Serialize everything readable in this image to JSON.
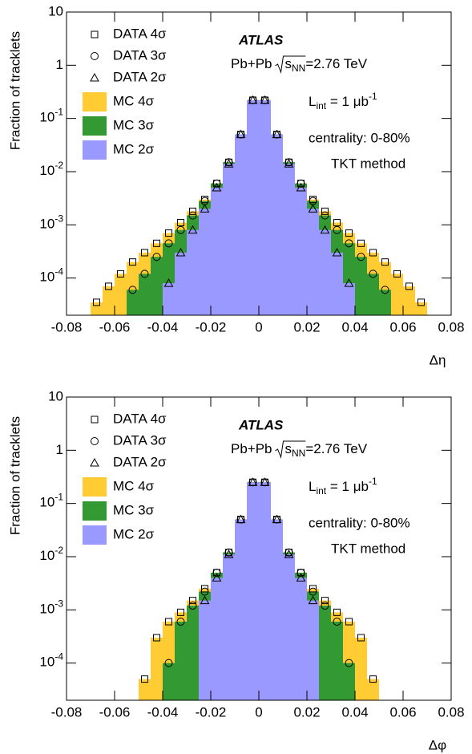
{
  "chart_data": [
    {
      "type": "histogram",
      "y_label": "Fraction of tracklets",
      "x_label": "Δη",
      "xlim": [
        -0.08,
        0.08
      ],
      "ylim": [
        2e-05,
        10
      ],
      "log_y": true,
      "legend": "upper left",
      "xticks": [
        -0.08,
        -0.06,
        -0.04,
        -0.02,
        0,
        0.02,
        0.04,
        0.06,
        0.08
      ],
      "yticks": [
        {
          "value": 0.0001,
          "label": "10",
          "exponent": "-4"
        },
        {
          "value": 0.001,
          "label": "10",
          "exponent": "-3"
        },
        {
          "value": 0.01,
          "label": "10",
          "exponent": "-2"
        },
        {
          "value": 0.1,
          "label": "10",
          "exponent": "-1"
        },
        1,
        10
      ],
      "bins": [
        -0.08,
        -0.075,
        -0.07,
        -0.065,
        -0.06,
        -0.055,
        -0.05,
        -0.045,
        -0.04,
        -0.035,
        -0.03,
        -0.025,
        -0.02,
        -0.015,
        -0.01,
        -0.005,
        0,
        0.005,
        0.01,
        0.015,
        0.02,
        0.025,
        0.03,
        0.035,
        0.04,
        0.045,
        0.05,
        0.055,
        0.06,
        0.065,
        0.07,
        0.075,
        0.08
      ],
      "series": [
        {
          "name": "DATA 4σ",
          "marker": "square",
          "color": "#000000",
          "values": [
            null,
            null,
            3.5e-05,
            7e-05,
            0.00012,
            0.0002,
            0.0003,
            0.00045,
            0.0007,
            0.0011,
            0.0018,
            0.003,
            0.006,
            0.015,
            0.05,
            0.22,
            0.22,
            0.05,
            0.015,
            0.006,
            0.003,
            0.0018,
            0.0011,
            0.0007,
            0.00045,
            0.0003,
            0.0002,
            0.00012,
            7e-05,
            3.5e-05,
            null,
            null
          ]
        },
        {
          "name": "DATA 3σ",
          "marker": "circle",
          "color": "#000000",
          "values": [
            null,
            null,
            null,
            null,
            null,
            6e-05,
            0.00012,
            0.00025,
            0.00045,
            0.0008,
            0.0015,
            0.0028,
            0.006,
            0.015,
            0.05,
            0.22,
            0.22,
            0.05,
            0.015,
            0.006,
            0.0028,
            0.0015,
            0.0008,
            0.00045,
            0.00025,
            0.00012,
            6e-05,
            null,
            null,
            null,
            null,
            null
          ]
        },
        {
          "name": "DATA 2σ",
          "marker": "triangle",
          "color": "#000000",
          "values": [
            null,
            null,
            null,
            null,
            null,
            null,
            null,
            null,
            8e-05,
            0.0003,
            0.0008,
            0.002,
            0.005,
            0.014,
            0.05,
            0.22,
            0.22,
            0.05,
            0.014,
            0.005,
            0.002,
            0.0008,
            0.0003,
            8e-05,
            null,
            null,
            null,
            null,
            null,
            null,
            null,
            null
          ]
        },
        {
          "name": "MC 4σ",
          "color": "#ffcc33",
          "values": [
            null,
            null,
            3.5e-05,
            7e-05,
            0.00012,
            0.0002,
            0.0003,
            0.00045,
            0.0007,
            0.0011,
            0.0018,
            0.003,
            0.006,
            0.015,
            0.05,
            0.22,
            0.22,
            0.05,
            0.015,
            0.006,
            0.003,
            0.0018,
            0.0011,
            0.0007,
            0.00045,
            0.0003,
            0.0002,
            0.00012,
            7e-05,
            3.5e-05,
            null,
            null
          ]
        },
        {
          "name": "MC 3σ",
          "color": "#339933",
          "values": [
            null,
            null,
            null,
            null,
            null,
            6e-05,
            0.00012,
            0.00025,
            0.00045,
            0.0008,
            0.0015,
            0.0028,
            0.006,
            0.015,
            0.05,
            0.22,
            0.22,
            0.05,
            0.015,
            0.006,
            0.0028,
            0.0015,
            0.0008,
            0.00045,
            0.00025,
            0.00012,
            6e-05,
            null,
            null,
            null,
            null,
            null
          ]
        },
        {
          "name": "MC 2σ",
          "color": "#9999ff",
          "values": [
            null,
            null,
            null,
            null,
            null,
            null,
            null,
            null,
            8e-05,
            0.0003,
            0.0008,
            0.002,
            0.005,
            0.014,
            0.05,
            0.22,
            0.22,
            0.05,
            0.014,
            0.005,
            0.002,
            0.0008,
            0.0003,
            8e-05,
            null,
            null,
            null,
            null,
            null,
            null,
            null,
            null
          ]
        }
      ],
      "annotations": {
        "experiment": "ATLAS",
        "energy": {
          "system": "Pb+Pb",
          "sqrt": "s",
          "sub": "NN",
          "value": "=2.76 TeV"
        },
        "luminosity": {
          "symbol": "L",
          "sub": "int",
          "value": " = 1 μb",
          "sup": "-1"
        },
        "centrality": "centrality: 0-80%",
        "method": "TKT method"
      }
    },
    {
      "type": "histogram",
      "y_label": "Fraction of tracklets",
      "x_label": "Δφ",
      "xlim": [
        -0.08,
        0.08
      ],
      "ylim": [
        2e-05,
        10
      ],
      "log_y": true,
      "legend": "upper left",
      "xticks": [
        -0.08,
        -0.06,
        -0.04,
        -0.02,
        0,
        0.02,
        0.04,
        0.06,
        0.08
      ],
      "yticks": [
        {
          "value": 0.0001,
          "label": "10",
          "exponent": "-4"
        },
        {
          "value": 0.001,
          "label": "10",
          "exponent": "-3"
        },
        {
          "value": 0.01,
          "label": "10",
          "exponent": "-2"
        },
        {
          "value": 0.1,
          "label": "10",
          "exponent": "-1"
        },
        1,
        10
      ],
      "bins": [
        -0.08,
        -0.075,
        -0.07,
        -0.065,
        -0.06,
        -0.055,
        -0.05,
        -0.045,
        -0.04,
        -0.035,
        -0.03,
        -0.025,
        -0.02,
        -0.015,
        -0.01,
        -0.005,
        0,
        0.005,
        0.01,
        0.015,
        0.02,
        0.025,
        0.03,
        0.035,
        0.04,
        0.045,
        0.05,
        0.055,
        0.06,
        0.065,
        0.07,
        0.075,
        0.08
      ],
      "series": [
        {
          "name": "DATA 4σ",
          "marker": "square",
          "color": "#000000",
          "values": [
            null,
            null,
            null,
            null,
            null,
            null,
            5e-05,
            0.0003,
            0.0006,
            0.0009,
            0.0015,
            0.0025,
            0.005,
            0.012,
            0.05,
            0.25,
            0.25,
            0.05,
            0.012,
            0.005,
            0.0025,
            0.0015,
            0.0009,
            0.0006,
            0.0003,
            5e-05,
            null,
            null,
            null,
            null,
            null,
            null
          ]
        },
        {
          "name": "DATA 3σ",
          "marker": "circle",
          "color": "#000000",
          "values": [
            null,
            null,
            null,
            null,
            null,
            null,
            null,
            null,
            0.0001,
            0.0006,
            0.0012,
            0.0022,
            0.005,
            0.012,
            0.05,
            0.25,
            0.25,
            0.05,
            0.012,
            0.005,
            0.0022,
            0.0012,
            0.0006,
            0.0001,
            null,
            null,
            null,
            null,
            null,
            null,
            null,
            null
          ]
        },
        {
          "name": "DATA 2σ",
          "marker": "triangle",
          "color": "#000000",
          "values": [
            null,
            null,
            null,
            null,
            null,
            null,
            null,
            null,
            null,
            null,
            null,
            0.0015,
            0.004,
            0.011,
            0.05,
            0.25,
            0.25,
            0.05,
            0.011,
            0.004,
            0.0015,
            null,
            null,
            null,
            null,
            null,
            null,
            null,
            null,
            null,
            null,
            null
          ]
        },
        {
          "name": "MC 4σ",
          "color": "#ffcc33",
          "values": [
            null,
            null,
            null,
            null,
            null,
            null,
            5e-05,
            0.0003,
            0.0006,
            0.0009,
            0.0015,
            0.0025,
            0.005,
            0.012,
            0.05,
            0.25,
            0.25,
            0.05,
            0.012,
            0.005,
            0.0025,
            0.0015,
            0.0009,
            0.0006,
            0.0003,
            5e-05,
            null,
            null,
            null,
            null,
            null,
            null
          ]
        },
        {
          "name": "MC 3σ",
          "color": "#339933",
          "values": [
            null,
            null,
            null,
            null,
            null,
            null,
            null,
            null,
            0.0001,
            0.0006,
            0.0012,
            0.0022,
            0.005,
            0.012,
            0.05,
            0.25,
            0.25,
            0.05,
            0.012,
            0.005,
            0.0022,
            0.0012,
            0.0006,
            0.0001,
            null,
            null,
            null,
            null,
            null,
            null,
            null,
            null
          ]
        },
        {
          "name": "MC 2σ",
          "color": "#9999ff",
          "values": [
            null,
            null,
            null,
            null,
            null,
            null,
            null,
            null,
            null,
            null,
            null,
            0.0015,
            0.004,
            0.011,
            0.05,
            0.25,
            0.25,
            0.05,
            0.011,
            0.004,
            0.0015,
            null,
            null,
            null,
            null,
            null,
            null,
            null,
            null,
            null,
            null,
            null
          ]
        }
      ],
      "annotations": {
        "experiment": "ATLAS",
        "energy": {
          "system": "Pb+Pb",
          "sqrt": "s",
          "sub": "NN",
          "value": "=2.76 TeV"
        },
        "luminosity": {
          "symbol": "L",
          "sub": "int",
          "value": " = 1 μb",
          "sup": "-1"
        },
        "centrality": "centrality: 0-80%",
        "method": "TKT method"
      }
    }
  ]
}
